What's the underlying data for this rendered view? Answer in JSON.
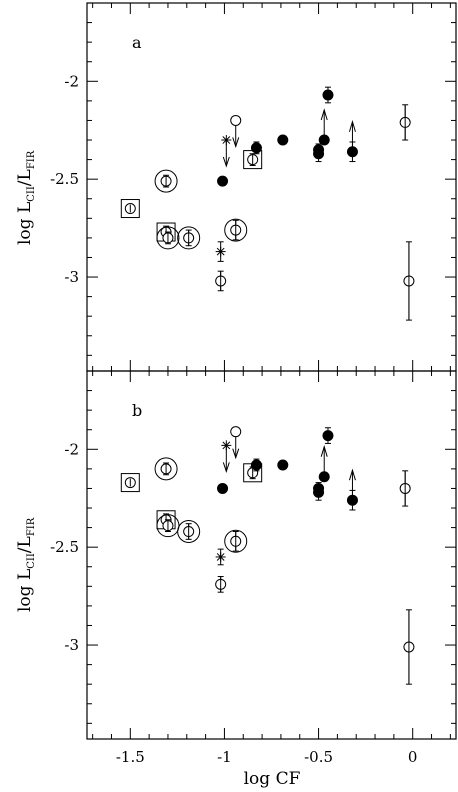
{
  "chart_data": [
    {
      "type": "scatter",
      "panel_label": "a",
      "xlabel": "log CF",
      "ylabel": {
        "main": "log L",
        "sub1": "CII",
        "slash": "/L",
        "sub2": "FIR"
      },
      "xlim": [
        -1.73,
        0.23
      ],
      "ylim": [
        -3.48,
        -1.6
      ],
      "yticks": [
        {
          "value": -2,
          "label": "-2"
        },
        {
          "value": -2.5,
          "label": "-2.5"
        },
        {
          "value": -3,
          "label": "-3"
        }
      ],
      "points": [
        {
          "x": -1.5,
          "y": -2.65,
          "marker": "open-in-square",
          "err": 0.02
        },
        {
          "x": -1.31,
          "y": -2.51,
          "marker": "open-in-ring",
          "err": 0.03
        },
        {
          "x": -1.31,
          "y": -2.77,
          "marker": "open-in-square",
          "err": 0.03
        },
        {
          "x": -1.3,
          "y": -2.8,
          "marker": "open-in-ring",
          "err": 0.03
        },
        {
          "x": -1.19,
          "y": -2.8,
          "marker": "open-in-ring",
          "err": 0.04
        },
        {
          "x": -1.02,
          "y": -3.02,
          "marker": "open",
          "err": 0.05
        },
        {
          "x": -1.02,
          "y": -2.87,
          "marker": "asterisk",
          "err": 0.05
        },
        {
          "x": -1.01,
          "y": -2.51,
          "marker": "filled"
        },
        {
          "x": -0.99,
          "y": -2.3,
          "marker": "asterisk",
          "limit": "upper"
        },
        {
          "x": -0.94,
          "y": -2.76,
          "marker": "open-in-ring",
          "err": 0.05
        },
        {
          "x": -0.94,
          "y": -2.2,
          "marker": "open",
          "limit": "upper"
        },
        {
          "x": -0.85,
          "y": -2.4,
          "marker": "open-in-square",
          "err": 0.03
        },
        {
          "x": -0.83,
          "y": -2.34,
          "marker": "filled",
          "err": 0.03
        },
        {
          "x": -0.69,
          "y": -2.3,
          "marker": "filled"
        },
        {
          "x": -0.5,
          "y": -2.35,
          "marker": "filled",
          "err": 0.03
        },
        {
          "x": -0.5,
          "y": -2.37,
          "marker": "filled",
          "err": 0.04
        },
        {
          "x": -0.47,
          "y": -2.3,
          "marker": "filled",
          "limit": "lower"
        },
        {
          "x": -0.45,
          "y": -2.07,
          "marker": "filled",
          "err": 0.04
        },
        {
          "x": -0.32,
          "y": -2.36,
          "marker": "filled",
          "err": 0.05,
          "limit": "lower"
        },
        {
          "x": -0.04,
          "y": -2.21,
          "marker": "open",
          "err": 0.09
        },
        {
          "x": -0.02,
          "y": -3.02,
          "marker": "open",
          "err": 0.2
        }
      ]
    },
    {
      "type": "scatter",
      "panel_label": "b",
      "xlabel": "log CF",
      "ylabel": {
        "main": "log L",
        "sub1": "CII",
        "slash": "/L",
        "sub2": "FIR"
      },
      "xlim": [
        -1.73,
        0.23
      ],
      "ylim": [
        -3.48,
        -1.6
      ],
      "xticks": [
        {
          "value": -1.5,
          "label": "-1.5"
        },
        {
          "value": -1,
          "label": "-1"
        },
        {
          "value": -0.5,
          "label": "-0.5"
        },
        {
          "value": 0,
          "label": "0"
        }
      ],
      "yticks": [
        {
          "value": -2,
          "label": "-2"
        },
        {
          "value": -2.5,
          "label": "-2.5"
        },
        {
          "value": -3,
          "label": "-3"
        }
      ],
      "points": [
        {
          "x": -1.5,
          "y": -2.17,
          "marker": "open-in-square",
          "err": 0.02
        },
        {
          "x": -1.31,
          "y": -2.1,
          "marker": "open-in-ring",
          "err": 0.03
        },
        {
          "x": -1.31,
          "y": -2.36,
          "marker": "open-in-square",
          "err": 0.03
        },
        {
          "x": -1.3,
          "y": -2.39,
          "marker": "open-in-ring",
          "err": 0.03
        },
        {
          "x": -1.19,
          "y": -2.42,
          "marker": "open-in-ring",
          "err": 0.04
        },
        {
          "x": -1.02,
          "y": -2.69,
          "marker": "open",
          "err": 0.04
        },
        {
          "x": -1.02,
          "y": -2.55,
          "marker": "asterisk",
          "err": 0.04
        },
        {
          "x": -1.01,
          "y": -2.2,
          "marker": "filled"
        },
        {
          "x": -0.99,
          "y": -1.98,
          "marker": "asterisk",
          "limit": "upper"
        },
        {
          "x": -0.94,
          "y": -2.47,
          "marker": "open-in-ring",
          "err": 0.05
        },
        {
          "x": -0.94,
          "y": -1.91,
          "marker": "open",
          "limit": "upper"
        },
        {
          "x": -0.85,
          "y": -2.12,
          "marker": "open-in-square",
          "err": 0.03
        },
        {
          "x": -0.83,
          "y": -2.08,
          "marker": "filled",
          "err": 0.03
        },
        {
          "x": -0.69,
          "y": -2.08,
          "marker": "filled"
        },
        {
          "x": -0.5,
          "y": -2.2,
          "marker": "filled",
          "err": 0.03
        },
        {
          "x": -0.5,
          "y": -2.22,
          "marker": "filled",
          "err": 0.04
        },
        {
          "x": -0.47,
          "y": -2.14,
          "marker": "filled",
          "limit": "lower"
        },
        {
          "x": -0.45,
          "y": -1.93,
          "marker": "filled",
          "err": 0.04
        },
        {
          "x": -0.32,
          "y": -2.26,
          "marker": "filled",
          "err": 0.05,
          "limit": "lower"
        },
        {
          "x": -0.04,
          "y": -2.2,
          "marker": "open",
          "err": 0.09
        },
        {
          "x": -0.02,
          "y": -3.01,
          "marker": "open",
          "err": 0.19
        }
      ]
    }
  ]
}
